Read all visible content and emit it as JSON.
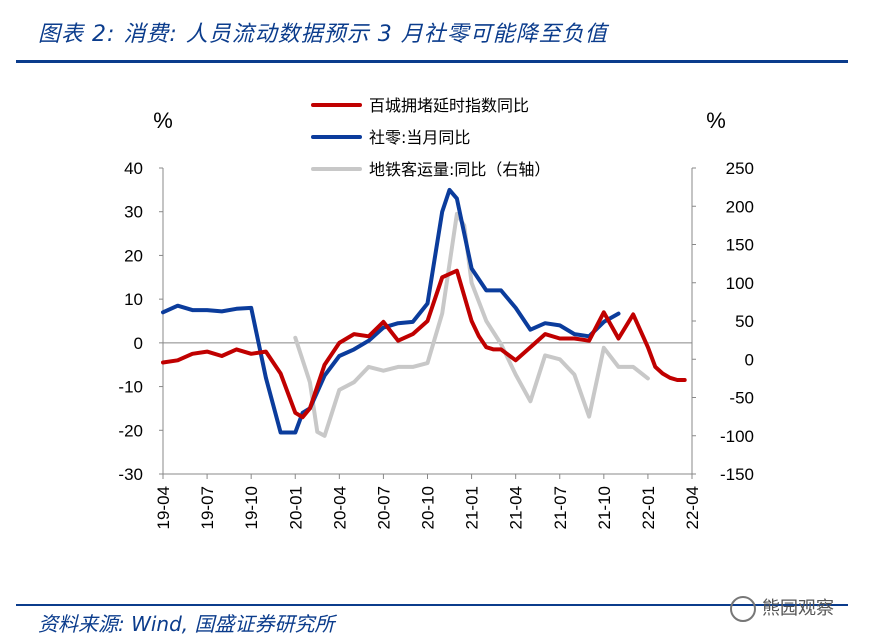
{
  "header": {
    "title": "图表 2:  消费:  人员流动数据预示 3 月社零可能降至负值"
  },
  "footer": {
    "source": "资料来源:  Wind,  国盛证券研究所",
    "watermark": "熊园观察"
  },
  "colors": {
    "red": "#c00000",
    "blue": "#0b3c9c",
    "gray": "#c8c8c8",
    "accent": "#0b3c8c"
  },
  "chart_data": {
    "type": "line",
    "title": "消费: 人员流动数据预示 3 月社零可能降至负值",
    "y_left": {
      "unit": "%",
      "ylim": [
        -30,
        40
      ],
      "ticks": [
        40,
        30,
        20,
        10,
        0,
        -10,
        -20,
        -30
      ]
    },
    "y_right": {
      "unit": "%",
      "ylim": [
        -150,
        250
      ],
      "ticks": [
        250,
        200,
        150,
        100,
        50,
        0,
        -50,
        -100,
        -150
      ]
    },
    "x_ticks": [
      "19-04",
      "19-07",
      "19-10",
      "20-01",
      "20-04",
      "20-07",
      "20-10",
      "21-01",
      "21-04",
      "21-07",
      "21-10",
      "22-01",
      "22-04"
    ],
    "x_range": [
      0,
      36
    ],
    "legend_position": "top-center",
    "series": [
      {
        "name": "百城拥堵延时指数同比",
        "axis": "left",
        "color": "#c00000",
        "x": [
          0,
          1,
          2,
          3,
          4,
          5,
          6,
          7,
          8,
          9,
          9.5,
          10,
          11,
          12,
          13,
          14,
          15,
          16,
          17,
          18,
          19,
          20,
          21,
          21.5,
          22,
          22.5,
          23,
          24,
          25,
          26,
          27,
          28,
          29,
          30,
          31,
          32,
          33,
          33.5,
          34,
          34.5,
          35,
          35.5
        ],
        "y": [
          -4.5,
          -4,
          -2.5,
          -2,
          -3,
          -1.5,
          -2.5,
          -2,
          -7,
          -16,
          -17,
          -15,
          -5,
          0,
          2,
          1.5,
          4.8,
          0.5,
          2,
          5,
          15,
          16.5,
          5,
          1.5,
          -1,
          -1.5,
          -1.5,
          -4,
          -1,
          2,
          1,
          1,
          0.5,
          7,
          1,
          6.5,
          -1,
          -5.5,
          -7,
          -8,
          -8.5,
          -8.5
        ]
      },
      {
        "name": "社零:当月同比",
        "axis": "left",
        "color": "#0b3c9c",
        "x": [
          0,
          1,
          2,
          3,
          4,
          5,
          6,
          7,
          8,
          9,
          9.5,
          10,
          11,
          12,
          13,
          14,
          15,
          16,
          17,
          18,
          19,
          19.5,
          20,
          21,
          22,
          23,
          24,
          25,
          26,
          27,
          28,
          29,
          30,
          31
        ],
        "y": [
          7,
          8.5,
          7.5,
          7.5,
          7.2,
          7.8,
          8,
          -8,
          -20.5,
          -20.5,
          -16,
          -15,
          -7.5,
          -3,
          -1.5,
          0.5,
          3.5,
          4.5,
          4.8,
          9,
          30,
          35,
          33,
          17,
          12,
          12,
          8,
          3,
          4.5,
          4,
          2,
          1.5,
          4.8,
          6.7
        ]
      },
      {
        "name": "地铁客运量:同比（右轴）",
        "axis": "right",
        "color": "#c8c8c8",
        "x": [
          9,
          10,
          10.5,
          11,
          12,
          13,
          14,
          15,
          16,
          17,
          18,
          19,
          20,
          20.5,
          21,
          22,
          23,
          24,
          25,
          26,
          27,
          28,
          29,
          30,
          31,
          32,
          33
        ],
        "y": [
          28,
          -30,
          -95,
          -100,
          -40,
          -30,
          -10,
          -15,
          -10,
          -10,
          -5,
          60,
          190,
          175,
          100,
          50,
          20,
          -20,
          -55,
          5,
          0,
          -20,
          -75,
          15,
          -10,
          -10,
          -25
        ]
      }
    ]
  }
}
